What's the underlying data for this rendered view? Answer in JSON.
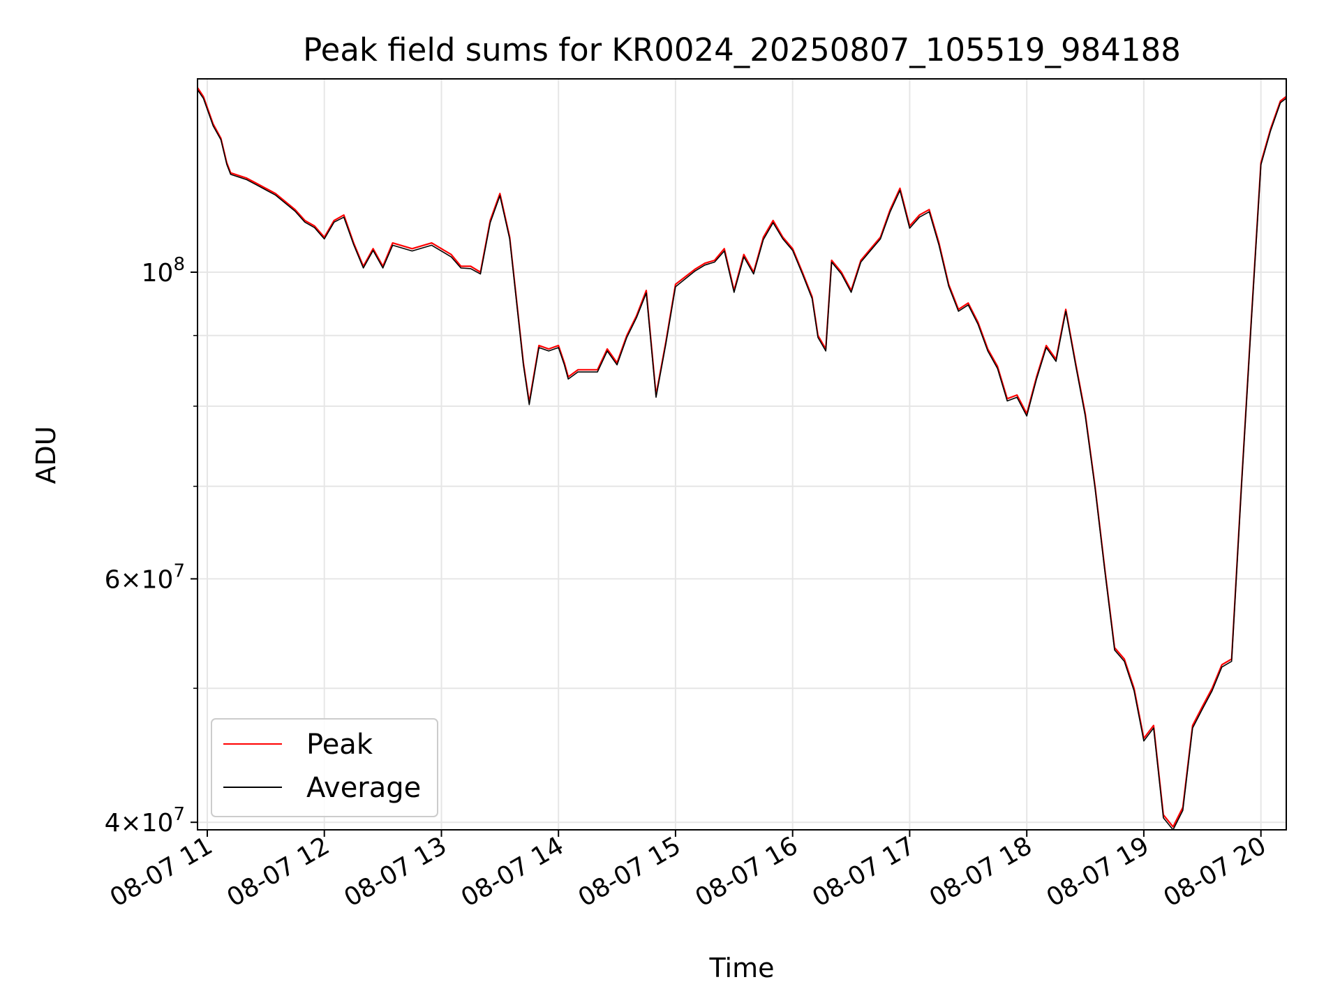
{
  "chart_data": {
    "type": "line",
    "title": "Peak field sums for KR0024_20250807_105519_984188",
    "xlabel": "Time",
    "ylabel": "ADU",
    "yscale": "log",
    "ylim": [
      39500000,
      138000000
    ],
    "xlim": [
      "2025-08-07 10:55",
      "2025-08-07 20:13"
    ],
    "x_ticks": [
      {
        "value": "2025-08-07 11:00",
        "label": "08-07 11"
      },
      {
        "value": "2025-08-07 12:00",
        "label": "08-07 12"
      },
      {
        "value": "2025-08-07 13:00",
        "label": "08-07 13"
      },
      {
        "value": "2025-08-07 14:00",
        "label": "08-07 14"
      },
      {
        "value": "2025-08-07 15:00",
        "label": "08-07 15"
      },
      {
        "value": "2025-08-07 16:00",
        "label": "08-07 16"
      },
      {
        "value": "2025-08-07 17:00",
        "label": "08-07 17"
      },
      {
        "value": "2025-08-07 18:00",
        "label": "08-07 18"
      },
      {
        "value": "2025-08-07 19:00",
        "label": "08-07 19"
      },
      {
        "value": "2025-08-07 20:00",
        "label": "08-07 20"
      }
    ],
    "y_major_ticks": [
      {
        "value": 40000000,
        "mantissa": "4",
        "exponent": "7"
      },
      {
        "value": 60000000,
        "mantissa": "6",
        "exponent": "7"
      },
      {
        "value": 100000000,
        "mantissa": "",
        "exponent": "8"
      }
    ],
    "y_minor_ticks": [
      50000000,
      70000000,
      80000000,
      90000000
    ],
    "grid": true,
    "legend_position": "bottom-left",
    "colors": {
      "peak": "#ff0000",
      "average": "#000000",
      "grid": "#e6e6e6"
    },
    "series": [
      {
        "name": "Peak",
        "x": [
          "2025-08-07 10:55",
          "2025-08-07 10:58",
          "2025-08-07 11:03",
          "2025-08-07 11:07",
          "2025-08-07 11:10",
          "2025-08-07 11:12",
          "2025-08-07 11:20",
          "2025-08-07 11:25",
          "2025-08-07 11:35",
          "2025-08-07 11:45",
          "2025-08-07 11:50",
          "2025-08-07 11:55",
          "2025-08-07 12:00",
          "2025-08-07 12:05",
          "2025-08-07 12:10",
          "2025-08-07 12:15",
          "2025-08-07 12:20",
          "2025-08-07 12:25",
          "2025-08-07 12:30",
          "2025-08-07 12:35",
          "2025-08-07 12:45",
          "2025-08-07 12:55",
          "2025-08-07 13:05",
          "2025-08-07 13:10",
          "2025-08-07 13:15",
          "2025-08-07 13:20",
          "2025-08-07 13:25",
          "2025-08-07 13:30",
          "2025-08-07 13:35",
          "2025-08-07 13:42",
          "2025-08-07 13:45",
          "2025-08-07 13:50",
          "2025-08-07 13:55",
          "2025-08-07 14:00",
          "2025-08-07 14:03",
          "2025-08-07 14:05",
          "2025-08-07 14:10",
          "2025-08-07 14:15",
          "2025-08-07 14:20",
          "2025-08-07 14:25",
          "2025-08-07 14:30",
          "2025-08-07 14:35",
          "2025-08-07 14:40",
          "2025-08-07 14:45",
          "2025-08-07 14:50",
          "2025-08-07 14:55",
          "2025-08-07 15:00",
          "2025-08-07 15:10",
          "2025-08-07 15:15",
          "2025-08-07 15:20",
          "2025-08-07 15:25",
          "2025-08-07 15:30",
          "2025-08-07 15:35",
          "2025-08-07 15:40",
          "2025-08-07 15:45",
          "2025-08-07 15:50",
          "2025-08-07 15:55",
          "2025-08-07 16:00",
          "2025-08-07 16:05",
          "2025-08-07 16:10",
          "2025-08-07 16:13",
          "2025-08-07 16:17",
          "2025-08-07 16:20",
          "2025-08-07 16:25",
          "2025-08-07 16:30",
          "2025-08-07 16:35",
          "2025-08-07 16:40",
          "2025-08-07 16:45",
          "2025-08-07 16:50",
          "2025-08-07 16:55",
          "2025-08-07 17:00",
          "2025-08-07 17:05",
          "2025-08-07 17:10",
          "2025-08-07 17:15",
          "2025-08-07 17:20",
          "2025-08-07 17:25",
          "2025-08-07 17:30",
          "2025-08-07 17:35",
          "2025-08-07 17:40",
          "2025-08-07 17:45",
          "2025-08-07 17:50",
          "2025-08-07 17:55",
          "2025-08-07 18:00",
          "2025-08-07 18:05",
          "2025-08-07 18:10",
          "2025-08-07 18:15",
          "2025-08-07 18:20",
          "2025-08-07 18:25",
          "2025-08-07 18:30",
          "2025-08-07 18:35",
          "2025-08-07 18:40",
          "2025-08-07 18:45",
          "2025-08-07 18:50",
          "2025-08-07 18:55",
          "2025-08-07 19:00",
          "2025-08-07 19:05",
          "2025-08-07 19:10",
          "2025-08-07 19:15",
          "2025-08-07 19:20",
          "2025-08-07 19:25",
          "2025-08-07 19:30",
          "2025-08-07 19:35",
          "2025-08-07 19:40",
          "2025-08-07 19:45",
          "2025-08-07 19:50",
          "2025-08-07 19:55",
          "2025-08-07 20:00",
          "2025-08-07 20:05",
          "2025-08-07 20:10",
          "2025-08-07 20:13"
        ],
        "y": [
          136000000,
          134000000,
          128000000,
          125000000,
          120000000,
          118000000,
          117000000,
          116000000,
          114000000,
          111000000,
          109000000,
          108000000,
          106000000,
          109000000,
          110000000,
          105000000,
          101000000,
          104000000,
          101000000,
          105000000,
          104000000,
          105000000,
          103000000,
          101000000,
          101000000,
          100000000,
          109000000,
          114000000,
          106000000,
          86000000,
          80500000,
          88500000,
          88000000,
          88500000,
          86000000,
          84000000,
          85000000,
          85000000,
          85000000,
          88000000,
          86000000,
          90000000,
          93000000,
          97000000,
          81500000,
          89000000,
          98000000,
          100500000,
          101500000,
          102000000,
          104000000,
          97000000,
          103000000,
          100000000,
          106000000,
          109000000,
          106000000,
          104000000,
          100000000,
          96000000,
          90000000,
          88000000,
          102000000,
          100000000,
          97000000,
          102000000,
          104000000,
          106000000,
          111000000,
          115000000,
          108000000,
          110000000,
          111000000,
          105000000,
          98000000,
          94000000,
          95000000,
          92000000,
          88000000,
          85500000,
          81000000,
          81500000,
          79000000,
          84000000,
          88500000,
          86500000,
          94000000,
          86000000,
          79000000,
          70000000,
          61000000,
          53500000,
          52500000,
          50000000,
          46000000,
          47000000,
          40500000,
          39700000,
          41000000,
          47000000,
          48500000,
          50000000,
          52000000,
          52500000,
          70000000,
          92000000,
          120000000,
          127000000,
          133000000,
          134000000
        ],
        "color": "#ff0000"
      },
      {
        "name": "Average",
        "x": [
          "2025-08-07 10:55",
          "2025-08-07 10:58",
          "2025-08-07 11:03",
          "2025-08-07 11:07",
          "2025-08-07 11:10",
          "2025-08-07 11:12",
          "2025-08-07 11:20",
          "2025-08-07 11:25",
          "2025-08-07 11:35",
          "2025-08-07 11:45",
          "2025-08-07 11:50",
          "2025-08-07 11:55",
          "2025-08-07 12:00",
          "2025-08-07 12:05",
          "2025-08-07 12:10",
          "2025-08-07 12:15",
          "2025-08-07 12:20",
          "2025-08-07 12:25",
          "2025-08-07 12:30",
          "2025-08-07 12:35",
          "2025-08-07 12:45",
          "2025-08-07 12:55",
          "2025-08-07 13:05",
          "2025-08-07 13:10",
          "2025-08-07 13:15",
          "2025-08-07 13:20",
          "2025-08-07 13:25",
          "2025-08-07 13:30",
          "2025-08-07 13:35",
          "2025-08-07 13:42",
          "2025-08-07 13:45",
          "2025-08-07 13:50",
          "2025-08-07 13:55",
          "2025-08-07 14:00",
          "2025-08-07 14:03",
          "2025-08-07 14:05",
          "2025-08-07 14:10",
          "2025-08-07 14:15",
          "2025-08-07 14:20",
          "2025-08-07 14:25",
          "2025-08-07 14:30",
          "2025-08-07 14:35",
          "2025-08-07 14:40",
          "2025-08-07 14:45",
          "2025-08-07 14:50",
          "2025-08-07 14:55",
          "2025-08-07 15:00",
          "2025-08-07 15:10",
          "2025-08-07 15:15",
          "2025-08-07 15:20",
          "2025-08-07 15:25",
          "2025-08-07 15:30",
          "2025-08-07 15:35",
          "2025-08-07 15:40",
          "2025-08-07 15:45",
          "2025-08-07 15:50",
          "2025-08-07 15:55",
          "2025-08-07 16:00",
          "2025-08-07 16:05",
          "2025-08-07 16:10",
          "2025-08-07 16:13",
          "2025-08-07 16:17",
          "2025-08-07 16:20",
          "2025-08-07 16:25",
          "2025-08-07 16:30",
          "2025-08-07 16:35",
          "2025-08-07 16:40",
          "2025-08-07 16:45",
          "2025-08-07 16:50",
          "2025-08-07 16:55",
          "2025-08-07 17:00",
          "2025-08-07 17:05",
          "2025-08-07 17:10",
          "2025-08-07 17:15",
          "2025-08-07 17:20",
          "2025-08-07 17:25",
          "2025-08-07 17:30",
          "2025-08-07 17:35",
          "2025-08-07 17:40",
          "2025-08-07 17:45",
          "2025-08-07 17:50",
          "2025-08-07 17:55",
          "2025-08-07 18:00",
          "2025-08-07 18:05",
          "2025-08-07 18:10",
          "2025-08-07 18:15",
          "2025-08-07 18:20",
          "2025-08-07 18:25",
          "2025-08-07 18:30",
          "2025-08-07 18:35",
          "2025-08-07 18:40",
          "2025-08-07 18:45",
          "2025-08-07 18:50",
          "2025-08-07 18:55",
          "2025-08-07 19:00",
          "2025-08-07 19:05",
          "2025-08-07 19:10",
          "2025-08-07 19:15",
          "2025-08-07 19:20",
          "2025-08-07 19:25",
          "2025-08-07 19:30",
          "2025-08-07 19:35",
          "2025-08-07 19:40",
          "2025-08-07 19:45",
          "2025-08-07 19:50",
          "2025-08-07 19:55",
          "2025-08-07 20:00",
          "2025-08-07 20:05",
          "2025-08-07 20:10",
          "2025-08-07 20:13"
        ],
        "y": [
          135500000,
          133600000,
          127600000,
          124700000,
          119700000,
          117700000,
          116700000,
          115700000,
          113700000,
          110700000,
          108700000,
          107700000,
          105700000,
          108700000,
          109600000,
          104700000,
          100700000,
          103700000,
          100700000,
          104600000,
          103600000,
          104600000,
          102600000,
          100700000,
          100600000,
          99700000,
          108600000,
          113600000,
          105700000,
          85700000,
          80200000,
          88200000,
          87700000,
          88200000,
          85700000,
          83700000,
          84700000,
          84700000,
          84700000,
          87700000,
          85700000,
          89700000,
          92700000,
          96600000,
          81200000,
          88700000,
          97600000,
          100200000,
          101200000,
          101700000,
          103600000,
          96700000,
          102600000,
          99700000,
          105600000,
          108600000,
          105700000,
          103700000,
          99700000,
          95700000,
          89700000,
          87700000,
          101700000,
          99700000,
          96700000,
          101700000,
          103700000,
          105700000,
          110600000,
          114600000,
          107600000,
          109600000,
          110600000,
          104600000,
          97700000,
          93700000,
          94700000,
          91700000,
          87700000,
          85200000,
          80700000,
          81200000,
          78700000,
          83700000,
          88200000,
          86200000,
          93700000,
          85700000,
          78700000,
          69800000,
          60800000,
          53300000,
          52300000,
          49800000,
          45800000,
          46800000,
          40300000,
          39500000,
          40800000,
          46800000,
          48300000,
          49800000,
          51800000,
          52300000,
          69800000,
          91700000,
          119600000,
          126600000,
          132600000,
          133600000
        ],
        "color": "#000000"
      }
    ]
  }
}
